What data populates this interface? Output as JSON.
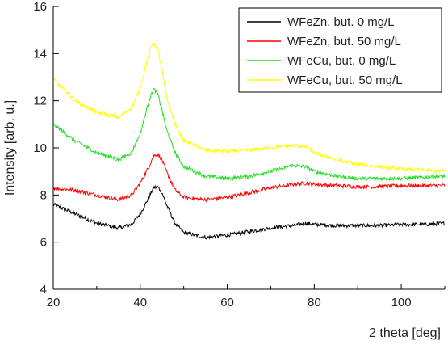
{
  "chart_data": {
    "type": "line",
    "xlabel": "2 theta [deg]",
    "ylabel": "Intensity [arb. u.]",
    "xlim": [
      20,
      110
    ],
    "ylim": [
      4,
      16
    ],
    "xticks": [
      20,
      40,
      60,
      80,
      100
    ],
    "yticks": [
      4,
      6,
      8,
      10,
      12,
      14,
      16
    ],
    "grid": false,
    "legend_position": "top-right",
    "series": [
      {
        "name": "WFeZn, but. 0 mg/L",
        "color": "#000000",
        "x": [
          20,
          25,
          30,
          35,
          38,
          40,
          42,
          43,
          44,
          45,
          46,
          48,
          50,
          55,
          60,
          65,
          70,
          75,
          78,
          80,
          85,
          90,
          95,
          100,
          105,
          110
        ],
        "y": [
          7.6,
          7.2,
          6.8,
          6.6,
          6.75,
          7.2,
          7.9,
          8.3,
          8.35,
          8.1,
          7.6,
          6.8,
          6.4,
          6.2,
          6.3,
          6.45,
          6.6,
          6.7,
          6.8,
          6.75,
          6.7,
          6.7,
          6.7,
          6.75,
          6.75,
          6.8
        ]
      },
      {
        "name": "WFeZn, but. 50 mg/L",
        "color": "#ff0000",
        "x": [
          20,
          25,
          30,
          35,
          38,
          40,
          42,
          43,
          44,
          45,
          46,
          48,
          50,
          55,
          60,
          65,
          70,
          75,
          78,
          80,
          85,
          90,
          95,
          100,
          105,
          110
        ],
        "y": [
          8.3,
          8.2,
          8.0,
          7.8,
          8.0,
          8.5,
          9.2,
          9.65,
          9.75,
          9.5,
          9.0,
          8.2,
          7.9,
          7.8,
          7.9,
          8.1,
          8.3,
          8.45,
          8.5,
          8.45,
          8.4,
          8.35,
          8.35,
          8.4,
          8.4,
          8.4
        ]
      },
      {
        "name": "WFeCu, but. 0 mg/L",
        "color": "#22dd22",
        "x": [
          20,
          25,
          30,
          35,
          38,
          40,
          41,
          42,
          43,
          44,
          45,
          46,
          48,
          50,
          55,
          60,
          65,
          70,
          75,
          78,
          80,
          85,
          90,
          95,
          100,
          105,
          110
        ],
        "y": [
          11.0,
          10.3,
          9.8,
          9.5,
          9.8,
          10.6,
          11.3,
          12.0,
          12.5,
          12.3,
          11.6,
          10.8,
          9.8,
          9.2,
          8.8,
          8.7,
          8.8,
          9.0,
          9.25,
          9.2,
          9.0,
          8.8,
          8.7,
          8.7,
          8.7,
          8.75,
          8.8
        ]
      },
      {
        "name": "WFeCu, but. 50 mg/L",
        "color": "#ffff00",
        "x": [
          20,
          25,
          30,
          35,
          38,
          40,
          41,
          42,
          43,
          44,
          45,
          46,
          48,
          50,
          55,
          60,
          65,
          70,
          75,
          78,
          80,
          85,
          90,
          95,
          100,
          105,
          110
        ],
        "y": [
          12.9,
          12.0,
          11.5,
          11.3,
          11.7,
          12.5,
          13.3,
          14.0,
          14.5,
          14.2,
          13.3,
          12.2,
          11.0,
          10.3,
          9.9,
          9.85,
          9.9,
          10.0,
          10.1,
          10.05,
          9.8,
          9.5,
          9.3,
          9.2,
          9.1,
          9.05,
          9.0
        ]
      }
    ]
  }
}
